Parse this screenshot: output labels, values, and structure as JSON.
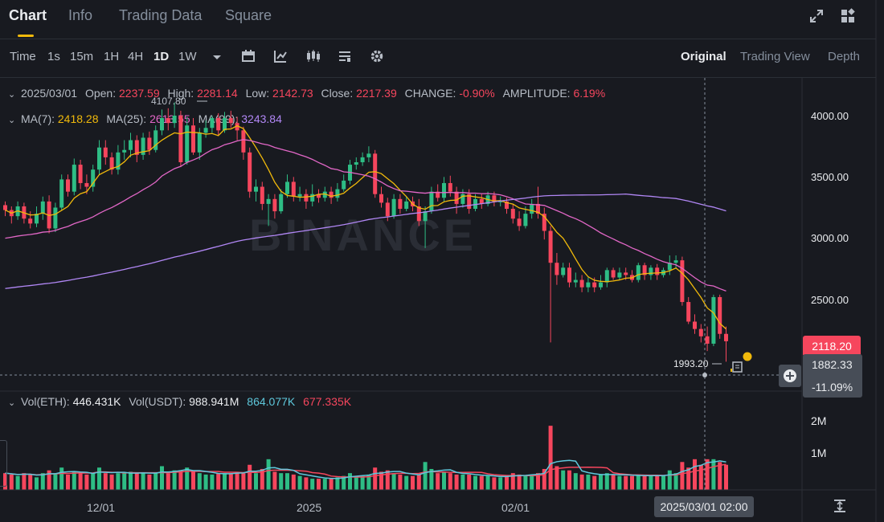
{
  "tabs": [
    {
      "label": "Chart",
      "active": true
    },
    {
      "label": "Info",
      "active": false
    },
    {
      "label": "Trading Data",
      "active": false
    },
    {
      "label": "Square",
      "active": false
    }
  ],
  "toolbar": {
    "time_label": "Time",
    "intervals": [
      "1s",
      "15m",
      "1H",
      "4H",
      "1D",
      "1W"
    ],
    "active_interval": "1D",
    "icons": [
      "chevron-down-icon",
      "calendar-icon",
      "indicators-icon",
      "candle-type-icon",
      "layout-icon",
      "gear-icon"
    ],
    "views": [
      "Original",
      "Trading View",
      "Depth"
    ],
    "active_view": "Original"
  },
  "ohlc": {
    "date": "2025/03/01",
    "open_label": "Open:",
    "open": "2237.59",
    "high_label": "High:",
    "high": "2281.14",
    "low_label": "Low:",
    "low": "2142.73",
    "close_label": "Close:",
    "close": "2217.39",
    "change_label": "CHANGE:",
    "change": "-0.90%",
    "amplitude_label": "AMPLITUDE:",
    "amplitude": "6.19%"
  },
  "ma": {
    "ma7_label": "MA(7):",
    "ma7": "2418.28",
    "ma25_label": "MA(25):",
    "ma25": "2613.55",
    "ma99_label": "MA(99):",
    "ma99": "3243.84"
  },
  "volume": {
    "eth_label": "Vol(ETH):",
    "eth": "446.431K",
    "usdt_label": "Vol(USDT):",
    "usdt": "988.941M",
    "ma1": "864.077K",
    "ma2": "677.335K",
    "axis": [
      "2M",
      "1M"
    ]
  },
  "axis": {
    "price_ticks": [
      "4000.00",
      "3500.00",
      "3000.00",
      "2500.00"
    ],
    "current_price": "2118.20",
    "hover_price": "1882.33",
    "hover_pct": "-11.09%",
    "x_labels": [
      "12/01",
      "2025",
      "02/01"
    ],
    "hover_date": "2025/03/01 02:00"
  },
  "annotations": {
    "high_mark": "4107.80",
    "low_mark": "1993.20"
  },
  "watermark": "BINANCE",
  "colors": {
    "up": "#2ebd85",
    "down": "#f6465d",
    "ma7": "#f0b90b",
    "ma25": "#e267c7",
    "ma99": "#b187f5",
    "vol_ma1": "#5ec8dc",
    "vol_ma2": "#f6465d"
  },
  "chart_data": {
    "type": "candlestick",
    "y_range": [
      1800,
      4250
    ],
    "candles": [
      [
        3270,
        3230,
        3300,
        3180
      ],
      [
        3230,
        3180,
        3260,
        3120
      ],
      [
        3180,
        3260,
        3300,
        3150
      ],
      [
        3260,
        3160,
        3290,
        3120
      ],
      [
        3160,
        3120,
        3220,
        3080
      ],
      [
        3120,
        3200,
        3260,
        3090
      ],
      [
        3200,
        3300,
        3340,
        3150
      ],
      [
        3300,
        3080,
        3350,
        3040
      ],
      [
        3080,
        3250,
        3290,
        3050
      ],
      [
        3250,
        3480,
        3520,
        3230
      ],
      [
        3480,
        3380,
        3520,
        3340
      ],
      [
        3380,
        3600,
        3650,
        3350
      ],
      [
        3600,
        3450,
        3640,
        3400
      ],
      [
        3450,
        3420,
        3520,
        3360
      ],
      [
        3420,
        3560,
        3600,
        3380
      ],
      [
        3560,
        3740,
        3800,
        3520
      ],
      [
        3740,
        3660,
        3800,
        3600
      ],
      [
        3660,
        3560,
        3700,
        3520
      ],
      [
        3560,
        3700,
        3760,
        3520
      ],
      [
        3700,
        3720,
        3800,
        3640
      ],
      [
        3720,
        3800,
        3860,
        3660
      ],
      [
        3800,
        3680,
        3840,
        3620
      ],
      [
        3680,
        3820,
        3860,
        3640
      ],
      [
        3820,
        3720,
        3870,
        3680
      ],
      [
        3720,
        3880,
        3920,
        3700
      ],
      [
        3880,
        3980,
        4050,
        3840
      ],
      [
        3980,
        3940,
        4060,
        3880
      ],
      [
        3940,
        4000,
        4108,
        3900
      ],
      [
        4000,
        3620,
        4040,
        3580
      ],
      [
        3620,
        3920,
        3990,
        3600
      ],
      [
        3920,
        3700,
        3980,
        3680
      ],
      [
        3700,
        3860,
        3900,
        3640
      ],
      [
        3860,
        3900,
        3960,
        3820
      ],
      [
        3900,
        3980,
        4000,
        3860
      ],
      [
        3980,
        3880,
        4020,
        3840
      ],
      [
        3880,
        3980,
        4030,
        3860
      ],
      [
        3980,
        3940,
        4040,
        3900
      ],
      [
        3940,
        3880,
        3990,
        3800
      ],
      [
        3880,
        3700,
        3910,
        3640
      ],
      [
        3700,
        3380,
        3740,
        3330
      ],
      [
        3380,
        3420,
        3480,
        3300
      ],
      [
        3420,
        3280,
        3460,
        3230
      ],
      [
        3280,
        3320,
        3360,
        3100
      ],
      [
        3320,
        3220,
        3360,
        3160
      ],
      [
        3220,
        3360,
        3400,
        3200
      ],
      [
        3360,
        3460,
        3520,
        3330
      ],
      [
        3460,
        3340,
        3500,
        3300
      ],
      [
        3340,
        3360,
        3420,
        3300
      ],
      [
        3360,
        3300,
        3400,
        3240
      ],
      [
        3300,
        3360,
        3440,
        3260
      ],
      [
        3360,
        3330,
        3400,
        3290
      ],
      [
        3330,
        3380,
        3420,
        3300
      ],
      [
        3380,
        3330,
        3420,
        3280
      ],
      [
        3330,
        3400,
        3450,
        3300
      ],
      [
        3400,
        3470,
        3520,
        3380
      ],
      [
        3470,
        3600,
        3640,
        3440
      ],
      [
        3600,
        3620,
        3660,
        3560
      ],
      [
        3620,
        3660,
        3700,
        3590
      ],
      [
        3660,
        3690,
        3750,
        3620
      ],
      [
        3690,
        3360,
        3720,
        3330
      ],
      [
        3360,
        3290,
        3420,
        3250
      ],
      [
        3290,
        3180,
        3330,
        3140
      ],
      [
        3180,
        3320,
        3360,
        3160
      ],
      [
        3320,
        3240,
        3360,
        3200
      ],
      [
        3240,
        3300,
        3340,
        3220
      ],
      [
        3300,
        3260,
        3340,
        3220
      ],
      [
        3260,
        3140,
        3320,
        3100
      ],
      [
        3140,
        3220,
        3260,
        2920
      ],
      [
        3220,
        3380,
        3420,
        3200
      ],
      [
        3380,
        3330,
        3440,
        3300
      ],
      [
        3330,
        3450,
        3500,
        3300
      ],
      [
        3450,
        3380,
        3510,
        3340
      ],
      [
        3380,
        3280,
        3420,
        3200
      ],
      [
        3280,
        3360,
        3400,
        3250
      ],
      [
        3360,
        3240,
        3400,
        3200
      ],
      [
        3240,
        3320,
        3360,
        3220
      ],
      [
        3320,
        3280,
        3360,
        3240
      ],
      [
        3280,
        3350,
        3380,
        3260
      ],
      [
        3350,
        3300,
        3380,
        3260
      ],
      [
        3300,
        3300,
        3340,
        3260
      ],
      [
        3300,
        3240,
        3330,
        3200
      ],
      [
        3240,
        3160,
        3280,
        3120
      ],
      [
        3160,
        3100,
        3220,
        3060
      ],
      [
        3100,
        3200,
        3260,
        3080
      ],
      [
        3200,
        3280,
        3320,
        3160
      ],
      [
        3280,
        3200,
        3420,
        3160
      ],
      [
        3200,
        3060,
        3250,
        2990
      ],
      [
        3060,
        2800,
        3100,
        2150
      ],
      [
        2800,
        2700,
        2880,
        2620
      ],
      [
        2700,
        2760,
        2800,
        2680
      ],
      [
        2760,
        2640,
        2800,
        2600
      ],
      [
        2640,
        2660,
        2720,
        2600
      ],
      [
        2660,
        2600,
        2700,
        2560
      ],
      [
        2600,
        2640,
        2680,
        2560
      ],
      [
        2640,
        2600,
        2680,
        2560
      ],
      [
        2600,
        2640,
        2700,
        2580
      ],
      [
        2640,
        2740,
        2760,
        2600
      ],
      [
        2740,
        2680,
        2760,
        2660
      ],
      [
        2680,
        2720,
        2760,
        2660
      ],
      [
        2720,
        2700,
        2760,
        2660
      ],
      [
        2700,
        2660,
        2740,
        2640
      ],
      [
        2660,
        2780,
        2800,
        2640
      ],
      [
        2780,
        2700,
        2800,
        2660
      ],
      [
        2700,
        2760,
        2780,
        2660
      ],
      [
        2760,
        2700,
        2790,
        2660
      ],
      [
        2700,
        2740,
        2760,
        2680
      ],
      [
        2740,
        2800,
        2860,
        2700
      ],
      [
        2800,
        2820,
        2860,
        2760
      ],
      [
        2820,
        2480,
        2850,
        2450
      ],
      [
        2480,
        2320,
        2520,
        2300
      ],
      [
        2320,
        2260,
        2380,
        2220
      ],
      [
        2260,
        2200,
        2300,
        2150
      ],
      [
        2200,
        2140,
        2280,
        2080
      ],
      [
        2140,
        2520,
        2540,
        2120
      ],
      [
        2520,
        2220,
        2540,
        2180
      ],
      [
        2220,
        2160,
        2280,
        1993
      ]
    ],
    "volume_max": 2.6,
    "volumes": [
      0.6,
      0.55,
      0.5,
      0.6,
      0.55,
      0.45,
      0.6,
      0.7,
      0.6,
      0.8,
      0.55,
      0.65,
      0.6,
      0.55,
      0.6,
      0.8,
      0.6,
      0.55,
      0.6,
      0.6,
      0.65,
      0.6,
      0.6,
      0.55,
      0.6,
      0.85,
      0.6,
      0.7,
      0.7,
      0.8,
      0.65,
      0.6,
      0.55,
      0.55,
      0.6,
      0.6,
      0.6,
      0.65,
      0.6,
      0.9,
      0.6,
      0.75,
      1.1,
      0.65,
      0.6,
      0.6,
      0.55,
      0.5,
      0.45,
      0.4,
      0.4,
      0.4,
      0.4,
      0.45,
      0.5,
      0.6,
      0.5,
      0.5,
      0.55,
      0.8,
      0.65,
      0.7,
      0.6,
      0.55,
      0.5,
      0.5,
      0.55,
      1.0,
      0.75,
      0.6,
      0.65,
      0.6,
      0.55,
      0.55,
      0.55,
      0.5,
      0.5,
      0.5,
      0.45,
      0.45,
      0.5,
      0.6,
      0.55,
      0.5,
      0.55,
      0.6,
      0.75,
      2.3,
      0.85,
      0.7,
      0.7,
      0.6,
      0.55,
      0.55,
      0.5,
      0.55,
      0.6,
      0.55,
      0.5,
      0.5,
      0.5,
      0.55,
      0.5,
      0.5,
      0.5,
      0.5,
      0.7,
      0.6,
      1.0,
      0.8,
      1.1,
      0.9,
      1.1,
      1.1,
      1.0,
      0.9
    ]
  }
}
